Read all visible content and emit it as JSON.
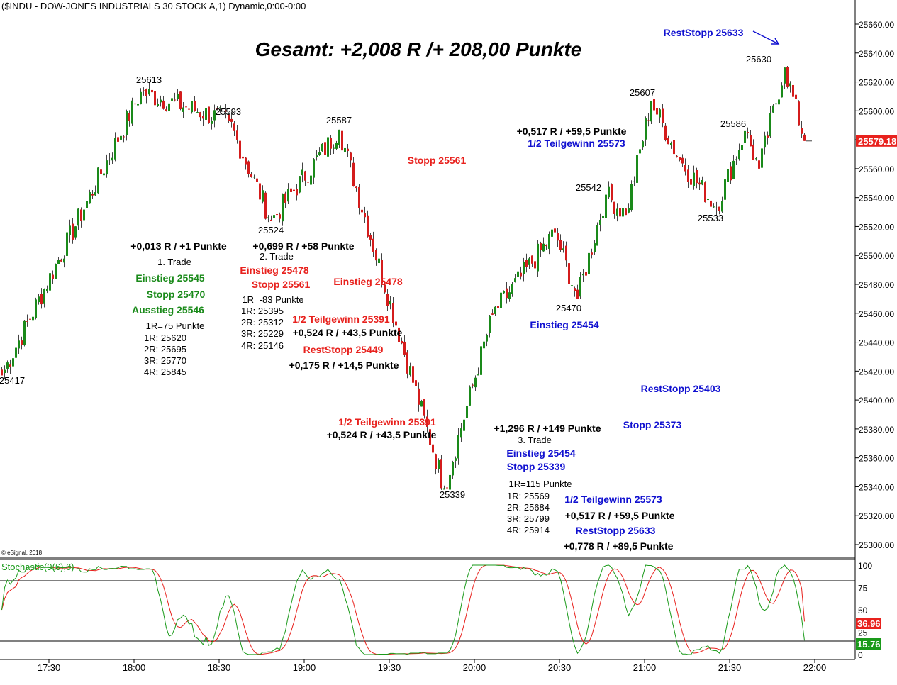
{
  "header": {
    "symbol_title": "($INDU - DOW-JONES INDUSTRIALS 30 STOCK A,1) Dynamic,0:00-0:00",
    "headline": "Gesamt: +2,008 R /+ 208,00 Punkte",
    "copyright": "© eSignal, 2018"
  },
  "price_axis": {
    "ticks": [
      "25660.00",
      "25640.00",
      "25620.00",
      "25600.00",
      "25580.00",
      "25560.00",
      "25540.00",
      "25520.00",
      "25500.00",
      "25480.00",
      "25460.00",
      "25440.00",
      "25420.00",
      "25400.00",
      "25380.00",
      "25360.00",
      "25340.00",
      "25320.00",
      "25300.00"
    ],
    "last_price_label": "25579.18",
    "last_price_color": "#e8211d"
  },
  "time_axis": {
    "ticks": [
      "17:30",
      "18:00",
      "18:30",
      "19:00",
      "19:30",
      "20:00",
      "20:30",
      "21:00",
      "21:30",
      "22:00"
    ]
  },
  "stochastic": {
    "title": "Stochastic(9(6),6)",
    "levels": [
      "100",
      "75",
      "50",
      "25",
      "0"
    ],
    "k_label": "15.76",
    "d_label": "36.96",
    "k_color": "#1a9a1a",
    "d_color": "#e8211d"
  },
  "annotations": [
    {
      "text": "25613",
      "color": "#000000",
      "size": 13,
      "bold": false
    },
    {
      "text": "25593",
      "color": "#000000",
      "size": 13,
      "bold": false
    },
    {
      "text": "25587",
      "color": "#000000",
      "size": 13,
      "bold": false
    },
    {
      "text": "25524",
      "color": "#000000",
      "size": 13,
      "bold": false
    },
    {
      "text": "25417",
      "color": "#000000",
      "size": 13,
      "bold": false
    },
    {
      "text": "25339",
      "color": "#000000",
      "size": 13,
      "bold": false
    },
    {
      "text": "25470",
      "color": "#000000",
      "size": 13,
      "bold": false
    },
    {
      "text": "25542",
      "color": "#000000",
      "size": 13,
      "bold": false
    },
    {
      "text": "25607",
      "color": "#000000",
      "size": 13,
      "bold": false
    },
    {
      "text": "25586",
      "color": "#000000",
      "size": 13,
      "bold": false
    },
    {
      "text": "25533",
      "color": "#000000",
      "size": 13,
      "bold": false
    },
    {
      "text": "25630",
      "color": "#000000",
      "size": 13,
      "bold": false
    },
    {
      "text": "RestStopp 25633",
      "color": "#1010d0",
      "size": 14,
      "bold": true
    },
    {
      "text": "+0,517 R / +59,5 Punkte",
      "color": "#000000",
      "size": 14,
      "bold": true
    },
    {
      "text": "1/2 Teilgewinn 25573",
      "color": "#1010d0",
      "size": 14,
      "bold": true
    },
    {
      "text": "Stopp 25561",
      "color": "#e8211d",
      "size": 14,
      "bold": true
    },
    {
      "text": "+0,013 R / +1 Punkte",
      "color": "#000000",
      "size": 14,
      "bold": true
    },
    {
      "text": "1. Trade",
      "color": "#000000",
      "size": 13,
      "bold": false
    },
    {
      "text": "Einstieg 25545",
      "color": "#1a8a1a",
      "size": 14,
      "bold": true
    },
    {
      "text": "Stopp 25470",
      "color": "#1a8a1a",
      "size": 14,
      "bold": true
    },
    {
      "text": "Ausstieg 25546",
      "color": "#1a8a1a",
      "size": 14,
      "bold": true
    },
    {
      "text": "1R=75 Punkte",
      "color": "#000000",
      "size": 13,
      "bold": false
    },
    {
      "text": "1R: 25620",
      "color": "#000000",
      "size": 13,
      "bold": false
    },
    {
      "text": "2R: 25695",
      "color": "#000000",
      "size": 13,
      "bold": false
    },
    {
      "text": "3R: 25770",
      "color": "#000000",
      "size": 13,
      "bold": false
    },
    {
      "text": "4R: 25845",
      "color": "#000000",
      "size": 13,
      "bold": false
    },
    {
      "text": "+0,699 R / +58 Punkte",
      "color": "#000000",
      "size": 14,
      "bold": true
    },
    {
      "text": "2. Trade",
      "color": "#000000",
      "size": 13,
      "bold": false
    },
    {
      "text": "Einstieg 25478",
      "color": "#e8211d",
      "size": 14,
      "bold": true
    },
    {
      "text": "Stopp 25561",
      "color": "#e8211d",
      "size": 14,
      "bold": true
    },
    {
      "text": "1R=-83 Punkte",
      "color": "#000000",
      "size": 13,
      "bold": false
    },
    {
      "text": "1R: 25395",
      "color": "#000000",
      "size": 13,
      "bold": false
    },
    {
      "text": "2R: 25312",
      "color": "#000000",
      "size": 13,
      "bold": false
    },
    {
      "text": "3R: 25229",
      "color": "#000000",
      "size": 13,
      "bold": false
    },
    {
      "text": "4R: 25146",
      "color": "#000000",
      "size": 13,
      "bold": false
    },
    {
      "text": "1/2 Teilgewinn 25391",
      "color": "#e8211d",
      "size": 14,
      "bold": true
    },
    {
      "text": "+0,524 R / +43,5 Punkte",
      "color": "#000000",
      "size": 14,
      "bold": true
    },
    {
      "text": "RestStopp 25449",
      "color": "#e8211d",
      "size": 14,
      "bold": true
    },
    {
      "text": "+0,175 R / +14,5 Punkte",
      "color": "#000000",
      "size": 14,
      "bold": true
    },
    {
      "text": "Einstieg 25478",
      "color": "#e8211d",
      "size": 14,
      "bold": true
    },
    {
      "text": "1/2 Teilgewinn 25391",
      "color": "#e8211d",
      "size": 14,
      "bold": true
    },
    {
      "text": "+0,524 R / +43,5 Punkte",
      "color": "#000000",
      "size": 14,
      "bold": true
    },
    {
      "text": "+1,296 R / +149 Punkte",
      "color": "#000000",
      "size": 14,
      "bold": true
    },
    {
      "text": "3. Trade",
      "color": "#000000",
      "size": 13,
      "bold": false
    },
    {
      "text": "Einstieg 25454",
      "color": "#1010d0",
      "size": 14,
      "bold": true
    },
    {
      "text": "Stopp 25339",
      "color": "#1010d0",
      "size": 14,
      "bold": true
    },
    {
      "text": "1R=115 Punkte",
      "color": "#000000",
      "size": 13,
      "bold": false
    },
    {
      "text": "1R: 25569",
      "color": "#000000",
      "size": 13,
      "bold": false
    },
    {
      "text": "2R: 25684",
      "color": "#000000",
      "size": 13,
      "bold": false
    },
    {
      "text": "3R: 25799",
      "color": "#000000",
      "size": 13,
      "bold": false
    },
    {
      "text": "4R: 25914",
      "color": "#000000",
      "size": 13,
      "bold": false
    },
    {
      "text": "1/2 Teilgewinn 25573",
      "color": "#1010d0",
      "size": 14,
      "bold": true
    },
    {
      "text": "+0,517 R / +59,5 Punkte",
      "color": "#000000",
      "size": 14,
      "bold": true
    },
    {
      "text": "RestStopp 25633",
      "color": "#1010d0",
      "size": 14,
      "bold": true
    },
    {
      "text": "+0,778 R / +89,5 Punkte",
      "color": "#000000",
      "size": 14,
      "bold": true
    },
    {
      "text": "Einstieg 25454",
      "color": "#1010d0",
      "size": 14,
      "bold": true
    },
    {
      "text": "RestStopp 25403",
      "color": "#1010d0",
      "size": 14,
      "bold": true
    },
    {
      "text": "Stopp 25373",
      "color": "#1010d0",
      "size": 14,
      "bold": true
    }
  ],
  "chart_data": {
    "type": "candlestick",
    "title": "($INDU - DOW-JONES INDUSTRIALS 30 STOCK A,1) Dynamic,0:00-0:00",
    "x_unit": "time (1-minute bars)",
    "x_range": [
      "17:11",
      "21:57"
    ],
    "ylim": [
      25290,
      25670
    ],
    "key_points": [
      {
        "time": "17:13",
        "price": 25417,
        "label": "25417"
      },
      {
        "time": "18:02",
        "price": 25613,
        "label": "25613"
      },
      {
        "time": "18:33",
        "price": 25593,
        "label": "25593"
      },
      {
        "time": "18:48",
        "price": 25524,
        "label": "25524"
      },
      {
        "time": "19:12",
        "price": 25587,
        "label": "25587"
      },
      {
        "time": "19:49",
        "price": 25339,
        "label": "25339"
      },
      {
        "time": "20:06",
        "price": 25459
      },
      {
        "time": "20:28",
        "price": 25516
      },
      {
        "time": "20:36",
        "price": 25470,
        "label": "25470"
      },
      {
        "time": "20:46",
        "price": 25542,
        "label": "25542"
      },
      {
        "time": "20:53",
        "price": 25528
      },
      {
        "time": "21:02",
        "price": 25607,
        "label": "25607"
      },
      {
        "time": "21:12",
        "price": 25566
      },
      {
        "time": "21:25",
        "price": 25533,
        "label": "25533"
      },
      {
        "time": "21:35",
        "price": 25586,
        "label": "25586"
      },
      {
        "time": "21:40",
        "price": 25560
      },
      {
        "time": "21:49",
        "price": 25630,
        "label": "25630"
      },
      {
        "time": "21:56",
        "price": 25579.18
      }
    ],
    "last_price": 25579.18,
    "stochastic": {
      "name": "Stochastic(9(6),6)",
      "ylim": [
        0,
        100
      ],
      "overbought": 80,
      "oversold": 20,
      "last_k": 15.76,
      "last_d": 36.96
    }
  }
}
